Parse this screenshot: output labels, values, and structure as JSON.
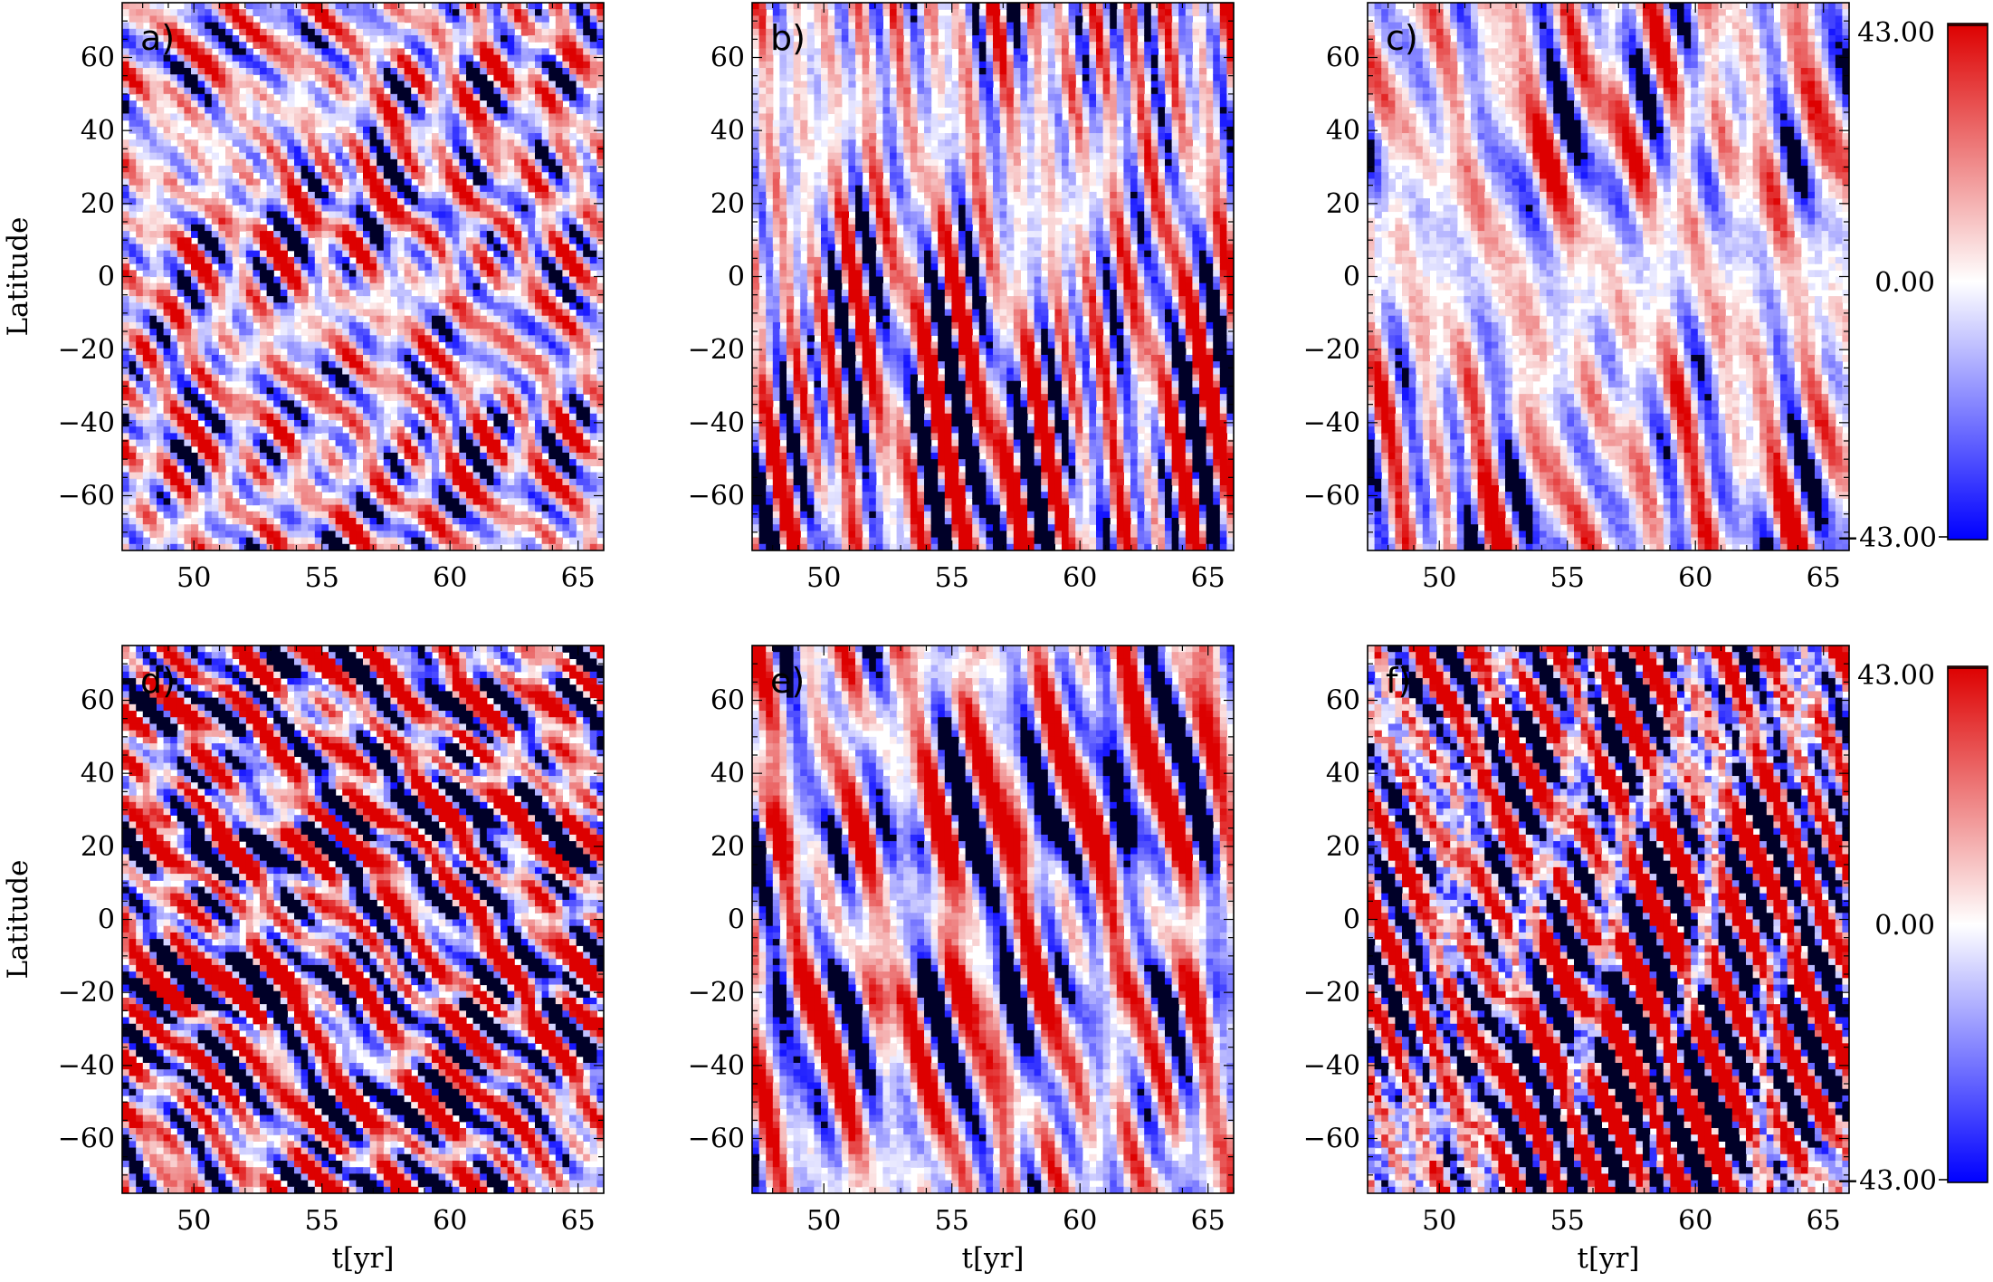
{
  "chart_data": [
    {
      "type": "heatmap",
      "panel_label": "a)",
      "xlabel": "",
      "ylabel": "Latitude",
      "x_ticks": [
        "50",
        "55",
        "60",
        "65"
      ],
      "y_ticks": [
        "60",
        "40",
        "20",
        "0",
        "−20",
        "−40",
        "−60"
      ],
      "xlim": [
        47.2,
        66.0
      ],
      "ylim": [
        -75,
        75
      ],
      "color_range": [
        -43.0,
        43.0
      ],
      "pattern": "broad",
      "hemisphere_bands": [],
      "band_latitudes": [],
      "amplitude": 0.55,
      "seed": 11
    },
    {
      "type": "heatmap",
      "panel_label": "b)",
      "xlabel": "",
      "ylabel": "",
      "x_ticks": [
        "50",
        "55",
        "60",
        "65"
      ],
      "y_ticks": [
        "60",
        "40",
        "20",
        "0",
        "−20",
        "−40",
        "−60"
      ],
      "xlim": [
        47.2,
        66.0
      ],
      "ylim": [
        -75,
        75
      ],
      "color_range": [
        -43.0,
        43.0
      ],
      "pattern": "vertical",
      "hemisphere_bands": [],
      "band_latitudes": [],
      "amplitude": 0.75,
      "seed": 23
    },
    {
      "type": "heatmap",
      "panel_label": "c)",
      "xlabel": "",
      "ylabel": "",
      "x_ticks": [
        "50",
        "55",
        "60",
        "65"
      ],
      "y_ticks": [
        "60",
        "40",
        "20",
        "0",
        "−20",
        "−40",
        "−60"
      ],
      "xlim": [
        47.2,
        66.0
      ],
      "ylim": [
        -75,
        75
      ],
      "color_range": [
        -43.0,
        43.0
      ],
      "pattern": "equator_quiet",
      "hemisphere_bands": [],
      "band_latitudes": [],
      "amplitude": 0.6,
      "seed": 37
    },
    {
      "type": "heatmap",
      "panel_label": "d)",
      "xlabel": "t[yr]",
      "ylabel": "Latitude",
      "x_ticks": [
        "50",
        "55",
        "60",
        "65"
      ],
      "y_ticks": [
        "60",
        "40",
        "20",
        "0",
        "−20",
        "−40",
        "−60"
      ],
      "xlim": [
        47.2,
        66.0
      ],
      "ylim": [
        -75,
        75
      ],
      "color_range": [
        -43.0,
        43.0
      ],
      "pattern": "diagonal_banded",
      "hemisphere_bands": [],
      "band_latitudes": [
        22,
        -22
      ],
      "amplitude": 0.8,
      "seed": 41
    },
    {
      "type": "heatmap",
      "panel_label": "e)",
      "xlabel": "t[yr]",
      "ylabel": "",
      "x_ticks": [
        "50",
        "55",
        "60",
        "65"
      ],
      "y_ticks": [
        "60",
        "40",
        "20",
        "0",
        "−20",
        "−40",
        "−60"
      ],
      "xlim": [
        47.2,
        66.0
      ],
      "ylim": [
        -75,
        75
      ],
      "color_range": [
        -43.0,
        43.0
      ],
      "pattern": "banded",
      "hemisphere_bands": [],
      "band_latitudes": [
        22,
        -20
      ],
      "amplitude": 0.6,
      "seed": 53
    },
    {
      "type": "heatmap",
      "panel_label": "f)",
      "xlabel": "t[yr]",
      "ylabel": "",
      "x_ticks": [
        "50",
        "55",
        "60",
        "65"
      ],
      "y_ticks": [
        "60",
        "40",
        "20",
        "0",
        "−20",
        "−40",
        "−60"
      ],
      "xlim": [
        47.2,
        66.0
      ],
      "ylim": [
        -75,
        75
      ],
      "color_range": [
        -43.0,
        43.0
      ],
      "pattern": "noisy",
      "hemisphere_bands": [],
      "band_latitudes": [],
      "amplitude": 1.0,
      "seed": 67
    }
  ],
  "colorbars": [
    {
      "max_label": "43.00",
      "mid_label": "0.00",
      "min_label": "−43.00",
      "colors": {
        "low": "#0000ff",
        "mid": "#ffffff",
        "high": "#dd0000"
      }
    },
    {
      "max_label": "43.00",
      "mid_label": "0.00",
      "min_label": "−43.00",
      "colors": {
        "low": "#0000ff",
        "mid": "#ffffff",
        "high": "#dd0000"
      }
    }
  ]
}
